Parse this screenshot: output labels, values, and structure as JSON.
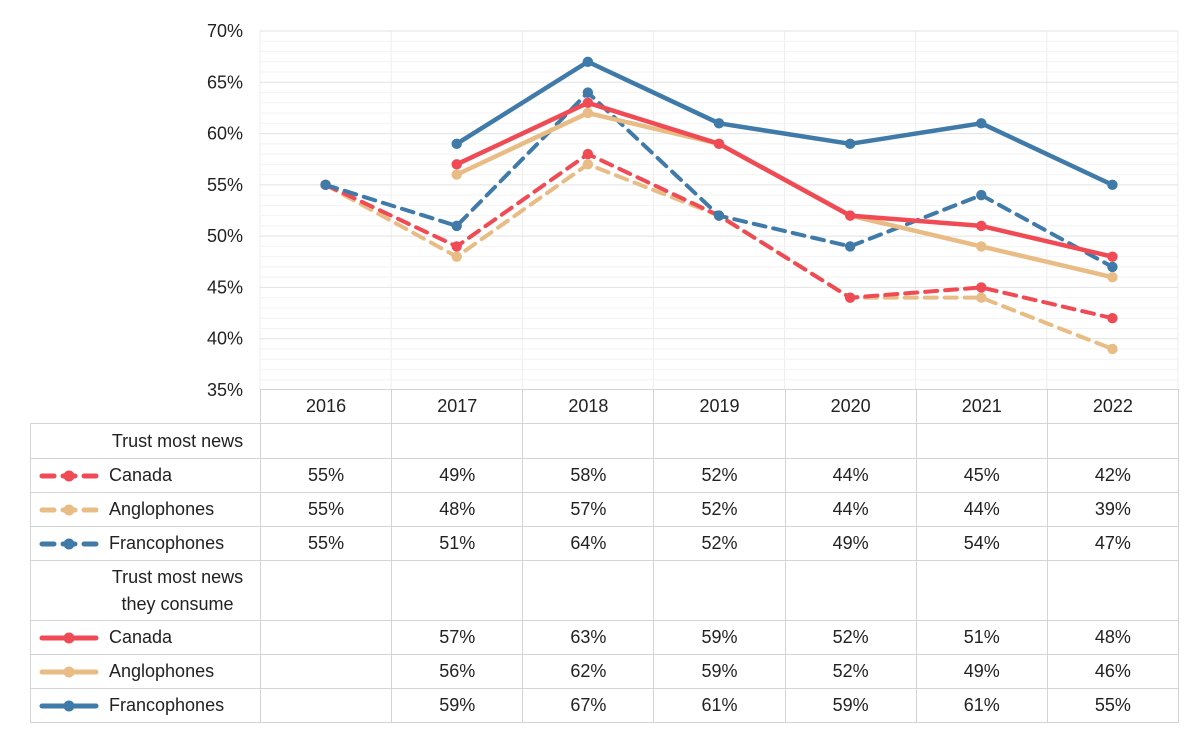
{
  "page": {
    "background": "#ffffff"
  },
  "chart": {
    "y_axis": {
      "tick_labels": [
        "70%",
        "65%",
        "60%",
        "55%",
        "50%",
        "45%",
        "40%",
        "35%"
      ],
      "min": 35,
      "max": 70,
      "major_step": 5,
      "minor_step": 1
    },
    "x_axis": {
      "categories": [
        "2016",
        "2017",
        "2018",
        "2019",
        "2020",
        "2021",
        "2022"
      ]
    },
    "colors": {
      "canada": "#f04b55",
      "anglophones": "#e8bc84",
      "francophones": "#3f7aa9",
      "grid_major": "#e2e2e2",
      "grid_minor": "#f4f2f2",
      "grid_vertical": "#ededed",
      "table_border": "#d4d4d4",
      "text": "#222222"
    }
  },
  "chart_data": {
    "type": "line",
    "categories": [
      "2016",
      "2017",
      "2018",
      "2019",
      "2020",
      "2021",
      "2022"
    ],
    "ylim": [
      35,
      70
    ],
    "xlabel": "",
    "ylabel": "",
    "grid": "horizontal major every 5%, minor every 1%",
    "legend_position": "table-left-column",
    "series": [
      {
        "name": "Canada (Trust most news)",
        "group": "Trust most news",
        "style": "dashed",
        "color": "#f04b55",
        "values": [
          55,
          49,
          58,
          52,
          44,
          45,
          42
        ]
      },
      {
        "name": "Anglophones (Trust most news)",
        "group": "Trust most news",
        "style": "dashed",
        "color": "#e8bc84",
        "values": [
          55,
          48,
          57,
          52,
          44,
          44,
          39
        ]
      },
      {
        "name": "Francophones (Trust most news)",
        "group": "Trust most news",
        "style": "dashed",
        "color": "#3f7aa9",
        "values": [
          55,
          51,
          64,
          52,
          49,
          54,
          47
        ]
      },
      {
        "name": "Canada (Trust most news they consume)",
        "group": "Trust most news they consume",
        "style": "solid",
        "color": "#f04b55",
        "values": [
          null,
          57,
          63,
          59,
          52,
          51,
          48
        ]
      },
      {
        "name": "Anglophones (Trust most news they consume)",
        "group": "Trust most news they consume",
        "style": "solid",
        "color": "#e8bc84",
        "values": [
          null,
          56,
          62,
          59,
          52,
          49,
          46
        ]
      },
      {
        "name": "Francophones (Trust most news they consume)",
        "group": "Trust most news they consume",
        "style": "solid",
        "color": "#3f7aa9",
        "values": [
          null,
          59,
          67,
          61,
          59,
          61,
          55
        ]
      }
    ]
  },
  "table": {
    "col_headers": [
      "2016",
      "2017",
      "2018",
      "2019",
      "2020",
      "2021",
      "2022"
    ],
    "sections": [
      {
        "header": "Trust most news",
        "rows": [
          {
            "label": "Canada",
            "swatch": "dashed",
            "color": "#f04b55",
            "cells": [
              "55%",
              "49%",
              "58%",
              "52%",
              "44%",
              "45%",
              "42%"
            ]
          },
          {
            "label": "Anglophones",
            "swatch": "dashed",
            "color": "#e8bc84",
            "cells": [
              "55%",
              "48%",
              "57%",
              "52%",
              "44%",
              "44%",
              "39%"
            ]
          },
          {
            "label": "Francophones",
            "swatch": "dashed",
            "color": "#3f7aa9",
            "cells": [
              "55%",
              "51%",
              "64%",
              "52%",
              "49%",
              "54%",
              "47%"
            ]
          }
        ]
      },
      {
        "header": "Trust most news\nthey consume",
        "rows": [
          {
            "label": "Canada",
            "swatch": "solid",
            "color": "#f04b55",
            "cells": [
              "",
              "57%",
              "63%",
              "59%",
              "52%",
              "51%",
              "48%"
            ]
          },
          {
            "label": "Anglophones",
            "swatch": "solid",
            "color": "#e8bc84",
            "cells": [
              "",
              "56%",
              "62%",
              "59%",
              "52%",
              "49%",
              "46%"
            ]
          },
          {
            "label": "Francophones",
            "swatch": "solid",
            "color": "#3f7aa9",
            "cells": [
              "",
              "59%",
              "67%",
              "61%",
              "59%",
              "61%",
              "55%"
            ]
          }
        ]
      }
    ]
  }
}
